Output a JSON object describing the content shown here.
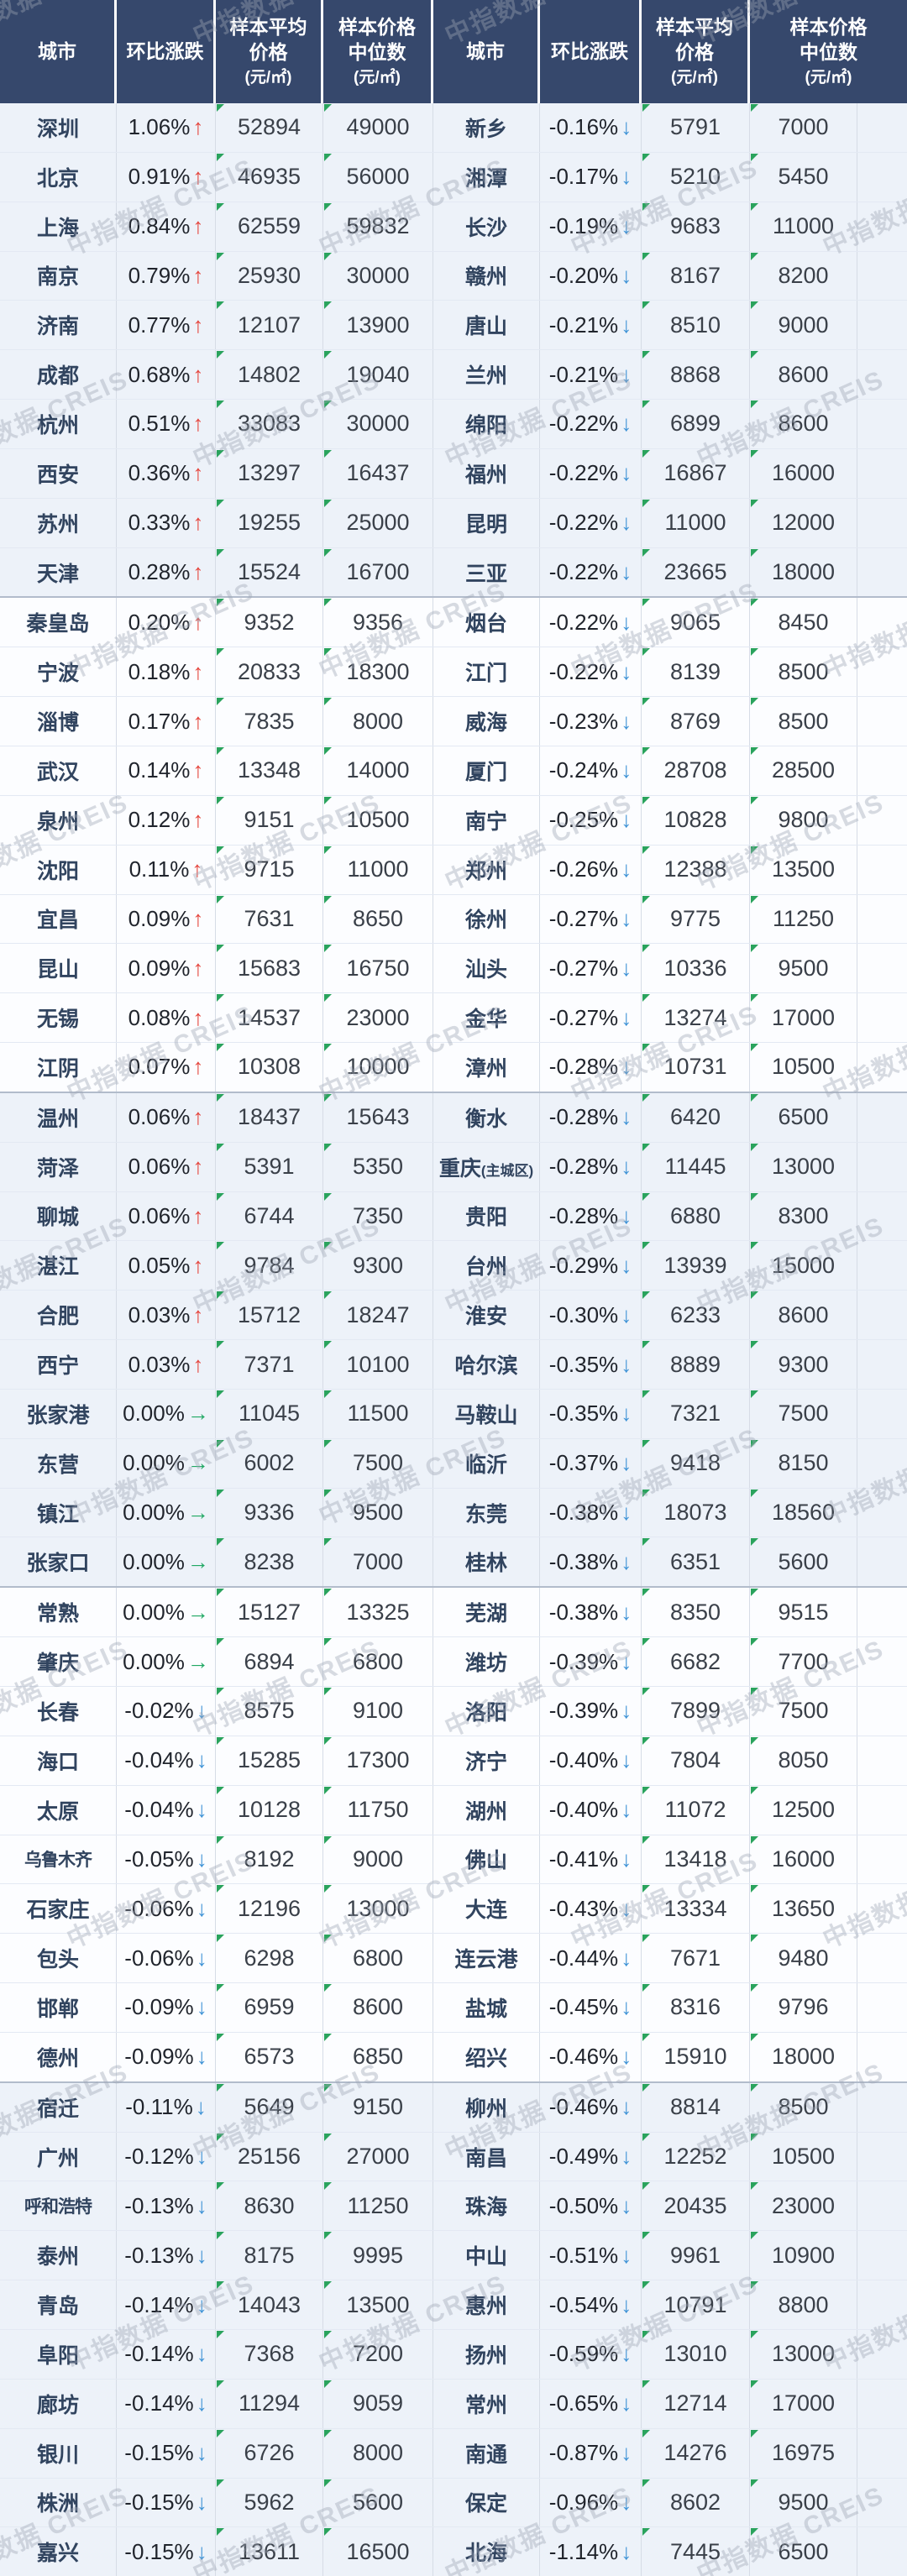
{
  "watermark": {
    "text": "中指数据 CREIS"
  },
  "arrows": {
    "up": "↑",
    "down": "↓",
    "flat": "→"
  },
  "colors": {
    "header_bg": "#36486c",
    "header_text": "#ffffff",
    "up_arrow": "#e5443c",
    "down_arrow": "#3f93d6",
    "flat_arrow": "#1fa863",
    "band_tint": "#edf2f9",
    "band_white": "#fcfdff",
    "city_text": "#31445f",
    "number_text": "#3a4049",
    "corner_marker": "#2aa35d"
  },
  "chart_data": {
    "type": "table",
    "columns": [
      "城市",
      "环比涨跌",
      "样本平均价格(元/㎡)",
      "样本价格中位数(元/㎡)"
    ],
    "header": {
      "city": "城市",
      "change": "环比涨跌",
      "avg_line1": "样本平均",
      "avg_line2": "价格",
      "median_line1": "样本价格",
      "median_line2": "中位数",
      "unit": "(元/㎡)"
    },
    "row_fields": [
      "city",
      "change_pct",
      "direction",
      "avg_price",
      "median_price"
    ],
    "left_rows": [
      [
        "深圳",
        "1.06%",
        "up",
        "52894",
        "49000"
      ],
      [
        "北京",
        "0.91%",
        "up",
        "46935",
        "56000"
      ],
      [
        "上海",
        "0.84%",
        "up",
        "62559",
        "59832"
      ],
      [
        "南京",
        "0.79%",
        "up",
        "25930",
        "30000"
      ],
      [
        "济南",
        "0.77%",
        "up",
        "12107",
        "13900"
      ],
      [
        "成都",
        "0.68%",
        "up",
        "14802",
        "19040"
      ],
      [
        "杭州",
        "0.51%",
        "up",
        "33083",
        "30000"
      ],
      [
        "西安",
        "0.36%",
        "up",
        "13297",
        "16437"
      ],
      [
        "苏州",
        "0.33%",
        "up",
        "19255",
        "25000"
      ],
      [
        "天津",
        "0.28%",
        "up",
        "15524",
        "16700"
      ],
      [
        "秦皇岛",
        "0.20%",
        "up",
        "9352",
        "9356"
      ],
      [
        "宁波",
        "0.18%",
        "up",
        "20833",
        "18300"
      ],
      [
        "淄博",
        "0.17%",
        "up",
        "7835",
        "8000"
      ],
      [
        "武汉",
        "0.14%",
        "up",
        "13348",
        "14000"
      ],
      [
        "泉州",
        "0.12%",
        "up",
        "9151",
        "10500"
      ],
      [
        "沈阳",
        "0.11%",
        "up",
        "9715",
        "11000"
      ],
      [
        "宜昌",
        "0.09%",
        "up",
        "7631",
        "8650"
      ],
      [
        "昆山",
        "0.09%",
        "up",
        "15683",
        "16750"
      ],
      [
        "无锡",
        "0.08%",
        "up",
        "14537",
        "23000"
      ],
      [
        "江阴",
        "0.07%",
        "up",
        "10308",
        "10000"
      ],
      [
        "温州",
        "0.06%",
        "up",
        "18437",
        "15643"
      ],
      [
        "菏泽",
        "0.06%",
        "up",
        "5391",
        "5350"
      ],
      [
        "聊城",
        "0.06%",
        "up",
        "6744",
        "7350"
      ],
      [
        "湛江",
        "0.05%",
        "up",
        "9784",
        "9300"
      ],
      [
        "合肥",
        "0.03%",
        "up",
        "15712",
        "18247"
      ],
      [
        "西宁",
        "0.03%",
        "up",
        "7371",
        "10100"
      ],
      [
        "张家港",
        "0.00%",
        "flat",
        "11045",
        "11500"
      ],
      [
        "东营",
        "0.00%",
        "flat",
        "6002",
        "7500"
      ],
      [
        "镇江",
        "0.00%",
        "flat",
        "9336",
        "9500"
      ],
      [
        "张家口",
        "0.00%",
        "flat",
        "8238",
        "7000"
      ],
      [
        "常熟",
        "0.00%",
        "flat",
        "15127",
        "13325"
      ],
      [
        "肇庆",
        "0.00%",
        "flat",
        "6894",
        "6800"
      ],
      [
        "长春",
        "-0.02%",
        "down",
        "8575",
        "9100"
      ],
      [
        "海口",
        "-0.04%",
        "down",
        "15285",
        "17300"
      ],
      [
        "太原",
        "-0.04%",
        "down",
        "10128",
        "11750"
      ],
      [
        "乌鲁木齐",
        "-0.05%",
        "down",
        "8192",
        "9000"
      ],
      [
        "石家庄",
        "-0.06%",
        "down",
        "12196",
        "13000"
      ],
      [
        "包头",
        "-0.06%",
        "down",
        "6298",
        "6800"
      ],
      [
        "邯郸",
        "-0.09%",
        "down",
        "6959",
        "8600"
      ],
      [
        "德州",
        "-0.09%",
        "down",
        "6573",
        "6850"
      ],
      [
        "宿迁",
        "-0.11%",
        "down",
        "5649",
        "9150"
      ],
      [
        "广州",
        "-0.12%",
        "down",
        "25156",
        "27000"
      ],
      [
        "呼和浩特",
        "-0.13%",
        "down",
        "8630",
        "11250"
      ],
      [
        "泰州",
        "-0.13%",
        "down",
        "8175",
        "9995"
      ],
      [
        "青岛",
        "-0.14%",
        "down",
        "14043",
        "13500"
      ],
      [
        "阜阳",
        "-0.14%",
        "down",
        "7368",
        "7200"
      ],
      [
        "廊坊",
        "-0.14%",
        "down",
        "11294",
        "9059"
      ],
      [
        "银川",
        "-0.15%",
        "down",
        "6726",
        "8000"
      ],
      [
        "株洲",
        "-0.15%",
        "down",
        "5962",
        "5600"
      ],
      [
        "嘉兴",
        "-0.15%",
        "down",
        "13611",
        "16500"
      ]
    ],
    "right_rows": [
      [
        "新乡",
        "-0.16%",
        "down",
        "5791",
        "7000"
      ],
      [
        "湘潭",
        "-0.17%",
        "down",
        "5210",
        "5450"
      ],
      [
        "长沙",
        "-0.19%",
        "down",
        "9683",
        "11000"
      ],
      [
        "赣州",
        "-0.20%",
        "down",
        "8167",
        "8200"
      ],
      [
        "唐山",
        "-0.21%",
        "down",
        "8510",
        "9000"
      ],
      [
        "兰州",
        "-0.21%",
        "down",
        "8868",
        "8600"
      ],
      [
        "绵阳",
        "-0.22%",
        "down",
        "6899",
        "8600"
      ],
      [
        "福州",
        "-0.22%",
        "down",
        "16867",
        "16000"
      ],
      [
        "昆明",
        "-0.22%",
        "down",
        "11000",
        "12000"
      ],
      [
        "三亚",
        "-0.22%",
        "down",
        "23665",
        "18000"
      ],
      [
        "烟台",
        "-0.22%",
        "down",
        "9065",
        "8450"
      ],
      [
        "江门",
        "-0.22%",
        "down",
        "8139",
        "8500"
      ],
      [
        "威海",
        "-0.23%",
        "down",
        "8769",
        "8500"
      ],
      [
        "厦门",
        "-0.24%",
        "down",
        "28708",
        "28500"
      ],
      [
        "南宁",
        "-0.25%",
        "down",
        "10828",
        "9800"
      ],
      [
        "郑州",
        "-0.26%",
        "down",
        "12388",
        "13500"
      ],
      [
        "徐州",
        "-0.27%",
        "down",
        "9775",
        "11250"
      ],
      [
        "汕头",
        "-0.27%",
        "down",
        "10336",
        "9500"
      ],
      [
        "金华",
        "-0.27%",
        "down",
        "13274",
        "17000"
      ],
      [
        "漳州",
        "-0.28%",
        "down",
        "10731",
        "10500"
      ],
      [
        "衡水",
        "-0.28%",
        "down",
        "6420",
        "6500"
      ],
      [
        "重庆(主城区)",
        "-0.28%",
        "down",
        "11445",
        "13000"
      ],
      [
        "贵阳",
        "-0.28%",
        "down",
        "6880",
        "8300"
      ],
      [
        "台州",
        "-0.29%",
        "down",
        "13939",
        "15000"
      ],
      [
        "淮安",
        "-0.30%",
        "down",
        "6233",
        "8600"
      ],
      [
        "哈尔滨",
        "-0.35%",
        "down",
        "8889",
        "9300"
      ],
      [
        "马鞍山",
        "-0.35%",
        "down",
        "7321",
        "7500"
      ],
      [
        "临沂",
        "-0.37%",
        "down",
        "9418",
        "8150"
      ],
      [
        "东莞",
        "-0.38%",
        "down",
        "18073",
        "18560"
      ],
      [
        "桂林",
        "-0.38%",
        "down",
        "6351",
        "5600"
      ],
      [
        "芜湖",
        "-0.38%",
        "down",
        "8350",
        "9515"
      ],
      [
        "潍坊",
        "-0.39%",
        "down",
        "6682",
        "7700"
      ],
      [
        "洛阳",
        "-0.39%",
        "down",
        "7899",
        "7500"
      ],
      [
        "济宁",
        "-0.40%",
        "down",
        "7804",
        "8050"
      ],
      [
        "湖州",
        "-0.40%",
        "down",
        "11072",
        "12500"
      ],
      [
        "佛山",
        "-0.41%",
        "down",
        "13418",
        "16000"
      ],
      [
        "大连",
        "-0.43%",
        "down",
        "13334",
        "13650"
      ],
      [
        "连云港",
        "-0.44%",
        "down",
        "7671",
        "9480"
      ],
      [
        "盐城",
        "-0.45%",
        "down",
        "8316",
        "9796"
      ],
      [
        "绍兴",
        "-0.46%",
        "down",
        "15910",
        "18000"
      ],
      [
        "柳州",
        "-0.46%",
        "down",
        "8814",
        "8500"
      ],
      [
        "南昌",
        "-0.49%",
        "down",
        "12252",
        "10500"
      ],
      [
        "珠海",
        "-0.50%",
        "down",
        "20435",
        "23000"
      ],
      [
        "中山",
        "-0.51%",
        "down",
        "9961",
        "10900"
      ],
      [
        "惠州",
        "-0.54%",
        "down",
        "10791",
        "8800"
      ],
      [
        "扬州",
        "-0.59%",
        "down",
        "13010",
        "13000"
      ],
      [
        "常州",
        "-0.65%",
        "down",
        "12714",
        "17000"
      ],
      [
        "南通",
        "-0.87%",
        "down",
        "14276",
        "16975"
      ],
      [
        "保定",
        "-0.96%",
        "down",
        "8602",
        "9500"
      ],
      [
        "北海",
        "-1.14%",
        "down",
        "7445",
        "6500"
      ]
    ]
  }
}
